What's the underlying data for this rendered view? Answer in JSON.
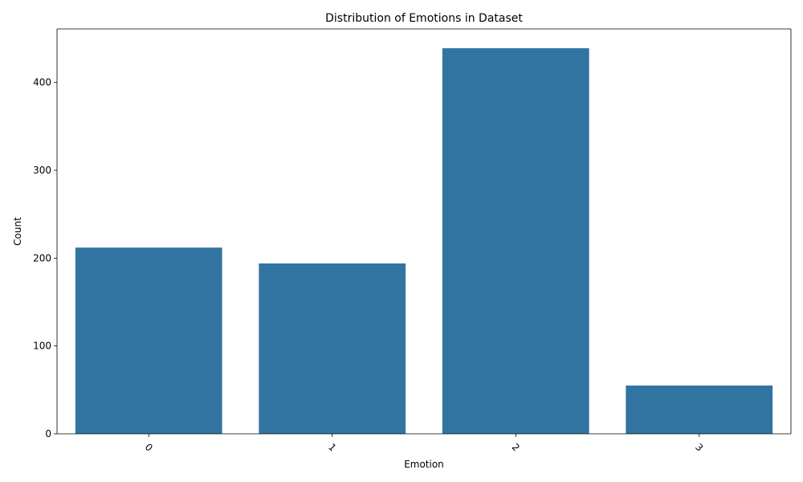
{
  "chart_data": {
    "type": "bar",
    "title": "Distribution of Emotions in Dataset",
    "xlabel": "Emotion",
    "ylabel": "Count",
    "categories": [
      "0",
      "1",
      "2",
      "3"
    ],
    "values": [
      212,
      194,
      439,
      55
    ],
    "ylim": [
      0,
      461
    ],
    "yticks": [
      0,
      100,
      200,
      300,
      400
    ],
    "xtick_rotation_deg": 45,
    "bar_color": "#3274a1",
    "grid": false,
    "legend": "none"
  }
}
